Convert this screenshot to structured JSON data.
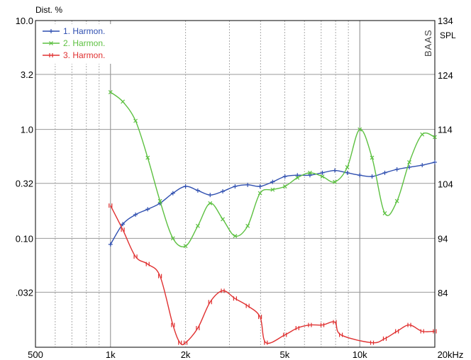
{
  "chart_data": {
    "type": "line",
    "xlabel": "",
    "ylabel": "Dist. %",
    "y2label": "SPL",
    "brand": "BAAS",
    "x_scale": "log",
    "y_scale": "log",
    "xlim": [
      500,
      20000
    ],
    "ylim": [
      0.01,
      10.0
    ],
    "y2lim": [
      74,
      134
    ],
    "grid": true,
    "legend_position": "top-left",
    "x_tick_labels": [
      {
        "value": 500,
        "label": "500"
      },
      {
        "value": 1000,
        "label": "1k"
      },
      {
        "value": 2000,
        "label": "2k"
      },
      {
        "value": 5000,
        "label": "5k"
      },
      {
        "value": 10000,
        "label": "10k"
      },
      {
        "value": 20000,
        "label": "20kHz"
      }
    ],
    "y_tick_labels": [
      {
        "value": 10.0,
        "label": "10.0"
      },
      {
        "value": 3.2,
        "label": "3.2"
      },
      {
        "value": 1.0,
        "label": "1.0"
      },
      {
        "value": 0.32,
        "label": "0.32"
      },
      {
        "value": 0.1,
        "label": "0.10"
      },
      {
        "value": 0.032,
        "label": ".032"
      }
    ],
    "y2_tick_labels": [
      {
        "value": 134,
        "label": "134"
      },
      {
        "value": 124,
        "label": "124"
      },
      {
        "value": 114,
        "label": "114"
      },
      {
        "value": 104,
        "label": "104"
      },
      {
        "value": 94,
        "label": "94"
      },
      {
        "value": 84,
        "label": "84"
      }
    ],
    "series": [
      {
        "name": "1. Harmon.",
        "color": "#2f4fb0",
        "marker": "plus",
        "x": [
          1000,
          1120,
          1260,
          1410,
          1580,
          1780,
          2000,
          2240,
          2510,
          2820,
          3160,
          3550,
          3980,
          4470,
          5010,
          5620,
          6310,
          7080,
          7940,
          8910,
          10000,
          11200,
          12600,
          14100,
          15800,
          17800,
          20000
        ],
        "y": [
          0.088,
          0.135,
          0.165,
          0.185,
          0.21,
          0.26,
          0.3,
          0.275,
          0.25,
          0.27,
          0.3,
          0.31,
          0.3,
          0.33,
          0.37,
          0.38,
          0.38,
          0.4,
          0.42,
          0.4,
          0.38,
          0.37,
          0.4,
          0.43,
          0.45,
          0.47,
          0.5
        ]
      },
      {
        "name": "2. Harmon.",
        "color": "#5cc040",
        "marker": "x",
        "x": [
          1000,
          1120,
          1260,
          1410,
          1580,
          1780,
          2000,
          2240,
          2510,
          2820,
          3160,
          3550,
          3980,
          4470,
          5010,
          5620,
          6310,
          7080,
          7940,
          8910,
          10000,
          11200,
          12600,
          14100,
          15800,
          17800,
          20000
        ],
        "y": [
          2.2,
          1.8,
          1.2,
          0.55,
          0.22,
          0.1,
          0.085,
          0.13,
          0.21,
          0.15,
          0.105,
          0.13,
          0.26,
          0.28,
          0.3,
          0.36,
          0.4,
          0.37,
          0.33,
          0.45,
          1.0,
          0.55,
          0.17,
          0.22,
          0.5,
          0.9,
          0.85
        ]
      },
      {
        "name": "3. Harmon.",
        "color": "#e03030",
        "marker": "bar",
        "x": [
          1000,
          1120,
          1260,
          1410,
          1580,
          1780,
          1900,
          2000,
          2240,
          2510,
          2820,
          3160,
          3550,
          3980,
          4200,
          5010,
          5620,
          6310,
          7080,
          7940,
          8400,
          11200,
          12600,
          14100,
          15800,
          17800,
          20000
        ],
        "y": [
          0.2,
          0.12,
          0.068,
          0.058,
          0.045,
          0.016,
          0.011,
          0.011,
          0.015,
          0.026,
          0.033,
          0.028,
          0.024,
          0.019,
          0.011,
          0.013,
          0.015,
          0.016,
          0.016,
          0.017,
          0.013,
          0.011,
          0.012,
          0.014,
          0.016,
          0.014,
          0.014
        ]
      }
    ]
  }
}
